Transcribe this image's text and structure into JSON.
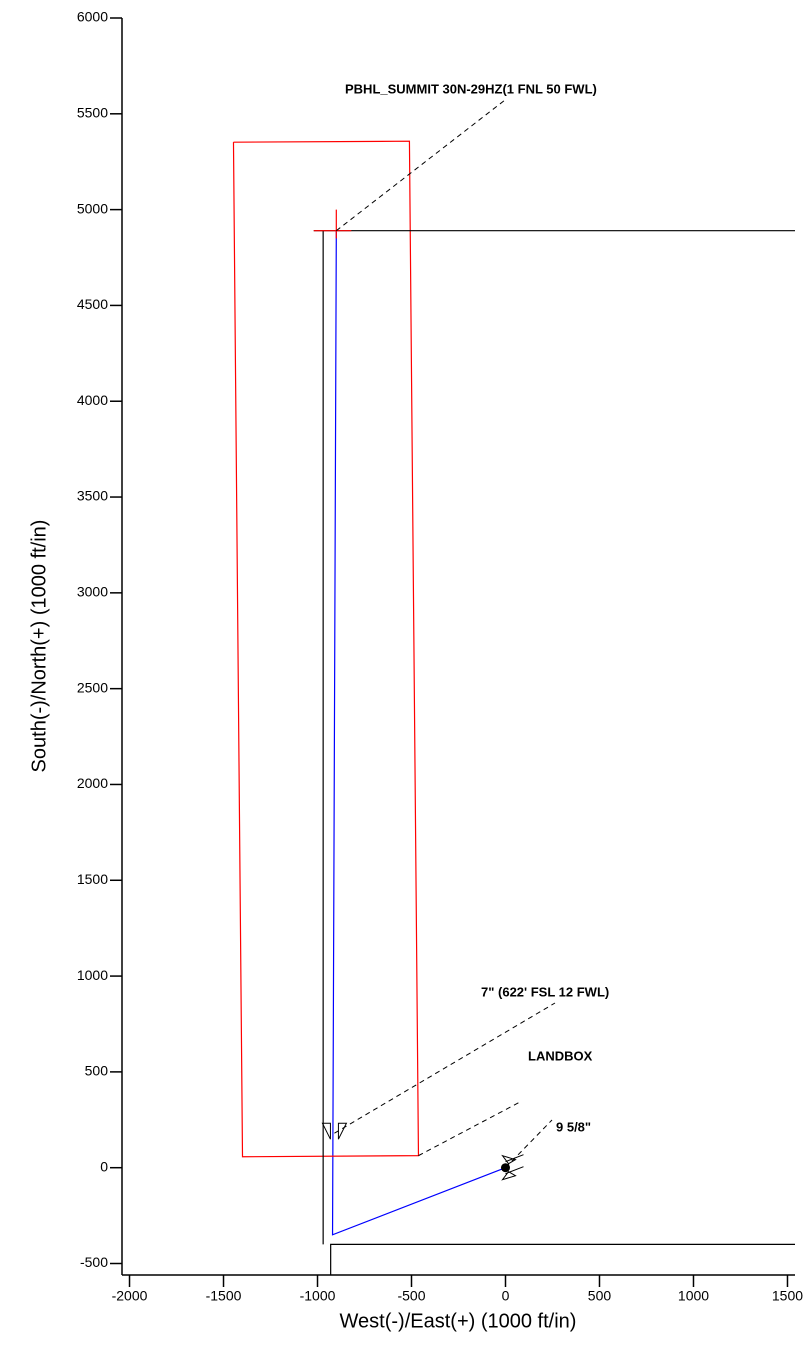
{
  "chart_data": {
    "type": "line",
    "xlabel": "West(-)/East(+) (1000 ft/in)",
    "ylabel": "South(-)/North(+) (1000 ft/in)",
    "xlim": [
      -2040,
      1540
    ],
    "ylim": [
      -560,
      6000
    ],
    "xticks": [
      -2000,
      -1500,
      -1000,
      -500,
      0,
      500,
      1000,
      1500
    ],
    "yticks": [
      -500,
      0,
      500,
      1000,
      1500,
      2000,
      2500,
      3000,
      3500,
      4000,
      4500,
      5000,
      5500,
      6000
    ],
    "series": [
      {
        "color": "#0000ff",
        "x": [
          0,
          -920,
          -900
        ],
        "values": [
          0,
          -350,
          4890
        ]
      },
      {
        "color": "#ff0000",
        "x": [
          -1447,
          -511,
          -463,
          -1399,
          -1447
        ],
        "values": [
          5352,
          5357,
          63,
          57,
          5352
        ]
      },
      {
        "color": "#000000",
        "x": [
          -1020,
          1540
        ],
        "values": [
          4890,
          4890
        ]
      },
      {
        "color": "#000000",
        "x": [
          -970,
          -970
        ],
        "values": [
          4890,
          -400
        ]
      },
      {
        "color": "#000000",
        "x": [
          -930,
          -930,
          1540
        ],
        "values": [
          -560,
          -400,
          -400
        ]
      },
      {
        "color": "#ff0000",
        "x": [
          -1020,
          -820
        ],
        "values": [
          4890,
          4890
        ]
      },
      {
        "color": "#ff0000",
        "x": [
          -900,
          -900
        ],
        "values": [
          5000,
          4850
        ]
      }
    ],
    "annotations": [
      {
        "text": "PBHL_SUMMIT 30N-29HZ(1 FNL 50 FWL)",
        "x": -900,
        "y": 4890
      },
      {
        "text": "7\" (622' FSL 12 FWL)",
        "x": -910,
        "y": 180
      },
      {
        "text": "LANDBOX",
        "x": -463,
        "y": 63
      },
      {
        "text": "9 5/8\"",
        "x": 0,
        "y": 0
      }
    ]
  }
}
